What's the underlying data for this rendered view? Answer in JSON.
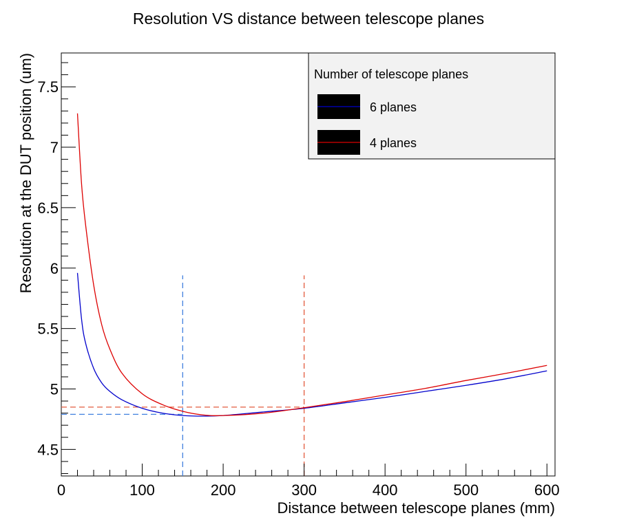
{
  "chart_data": {
    "type": "line",
    "title": "Resolution VS distance between telescope planes",
    "xlabel": "Distance between telescope planes (mm)",
    "ylabel": "Resolution at the DUT position (um)",
    "xlim": [
      0,
      610
    ],
    "ylim": [
      4.28,
      7.78
    ],
    "x_ticks": [
      0,
      100,
      200,
      300,
      400,
      500,
      600
    ],
    "y_ticks": [
      4.5,
      5,
      5.5,
      6,
      6.5,
      7,
      7.5
    ],
    "legend": {
      "title": "Number of telescope planes",
      "placement": "top-right",
      "entries": [
        "6 planes",
        "4 planes"
      ]
    },
    "series": [
      {
        "name": "6 planes",
        "color": "#0000cc",
        "x": [
          20,
          25,
          30,
          40,
          50,
          60,
          75,
          100,
          125,
          150,
          175,
          200,
          250,
          300,
          350,
          400,
          450,
          500,
          550,
          600
        ],
        "y": [
          5.96,
          5.58,
          5.38,
          5.17,
          5.05,
          4.98,
          4.91,
          4.84,
          4.8,
          4.78,
          4.775,
          4.78,
          4.81,
          4.84,
          4.885,
          4.93,
          4.98,
          5.03,
          5.085,
          5.15
        ]
      },
      {
        "name": "4 planes",
        "color": "#dd0000",
        "x": [
          20,
          25,
          30,
          40,
          50,
          60,
          75,
          100,
          125,
          150,
          175,
          200,
          250,
          300,
          350,
          400,
          450,
          500,
          550,
          600
        ],
        "y": [
          7.28,
          6.7,
          6.36,
          5.86,
          5.53,
          5.33,
          5.13,
          4.96,
          4.87,
          4.815,
          4.785,
          4.78,
          4.8,
          4.845,
          4.895,
          4.95,
          5.005,
          5.07,
          5.13,
          5.195
        ]
      }
    ],
    "reference_lines": [
      {
        "orientation": "vertical",
        "x": 150,
        "y_range": [
          4.28,
          5.94
        ],
        "color": "#3f7fdf",
        "style": "dashed"
      },
      {
        "orientation": "horizontal",
        "y": 4.79,
        "x_range": [
          0,
          150
        ],
        "color": "#3f7fdf",
        "style": "dashed"
      },
      {
        "orientation": "vertical",
        "x": 300,
        "y_range": [
          4.28,
          5.94
        ],
        "color": "#e35a3c",
        "style": "dashed"
      },
      {
        "orientation": "horizontal",
        "y": 4.85,
        "x_range": [
          0,
          300
        ],
        "color": "#e35a3c",
        "style": "dashed"
      }
    ],
    "grid": false
  }
}
